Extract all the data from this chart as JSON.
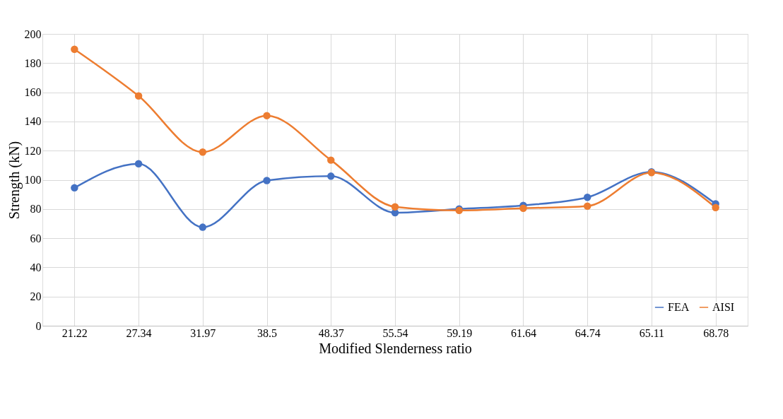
{
  "chart_data": {
    "type": "line",
    "xlabel": "Modified Slenderness ratio",
    "ylabel": "Strength  (kN)",
    "categories": [
      "21.22",
      "27.34",
      "31.97",
      "38.5",
      "48.37",
      "55.54",
      "59.19",
      "61.64",
      "64.74",
      "65.11",
      "68.78"
    ],
    "series": [
      {
        "name": "FEA",
        "color": "#4472c4",
        "values": [
          94.5,
          111,
          67.5,
          99.5,
          102.5,
          77.5,
          80,
          82.5,
          88,
          105.5,
          83.5
        ]
      },
      {
        "name": "AISI",
        "color": "#ed7d31",
        "values": [
          189.5,
          157.5,
          119,
          144,
          113.5,
          81.5,
          79,
          80.5,
          82,
          105,
          81
        ]
      }
    ],
    "ylim": [
      0,
      200
    ],
    "yticks": [
      0,
      20,
      40,
      60,
      80,
      100,
      120,
      140,
      160,
      180,
      200
    ],
    "grid": true,
    "legend": "bottom right",
    "marker": "circle",
    "line_style": "solid"
  }
}
